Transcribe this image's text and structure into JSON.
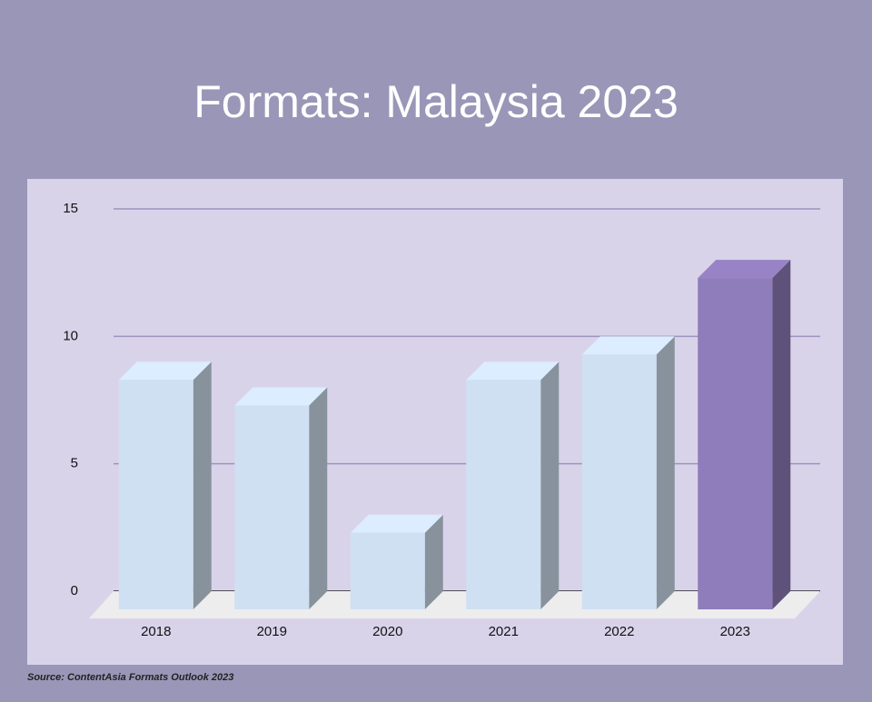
{
  "chart_data": {
    "type": "bar3d",
    "title": "Formats: Malaysia 2023",
    "categories": [
      "2018",
      "2019",
      "2020",
      "2021",
      "2022",
      "2023"
    ],
    "values": [
      9,
      8,
      3,
      9,
      10,
      13
    ],
    "colors": [
      "#cfe0f2",
      "#cfe0f2",
      "#cfe0f2",
      "#cfe0f2",
      "#cfe0f2",
      "#8f7cbb"
    ],
    "ylim": [
      0,
      15
    ],
    "yticks": [
      0,
      5,
      10,
      15
    ],
    "grid": true,
    "source": "Source: ContentAsia Formats Outlook 2023"
  }
}
